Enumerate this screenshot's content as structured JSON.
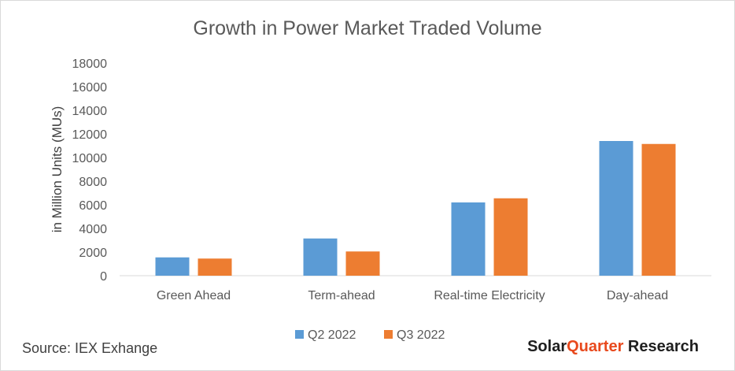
{
  "chart_data": {
    "type": "bar",
    "title": "Growth in Power Market Traded Volume",
    "xlabel": "",
    "ylabel": "in Million Units (MUs)",
    "ylim": [
      0,
      18000
    ],
    "yticks": [
      "0",
      "2000",
      "4000",
      "6000",
      "8000",
      "10000",
      "12000",
      "14000",
      "16000",
      "18000"
    ],
    "categories": [
      "Green  Ahead",
      "Term-ahead",
      "Real-time Electricity",
      "Day-ahead"
    ],
    "series": [
      {
        "name": "Q2 2022",
        "color": "#5b9bd5",
        "values": [
          1550,
          3150,
          6200,
          11400
        ]
      },
      {
        "name": "Q3 2022",
        "color": "#ed7d31",
        "values": [
          1450,
          2050,
          6550,
          11150
        ]
      }
    ],
    "grid": false,
    "legend_position": "bottom"
  },
  "footer": {
    "source": "Source: IEX Exhange",
    "brand_part1": "Solar",
    "brand_part2": "Quarter",
    "brand_part3": " Research",
    "brand_color_dark": "#1f1f1f",
    "brand_color_accent": "#e8491d"
  }
}
